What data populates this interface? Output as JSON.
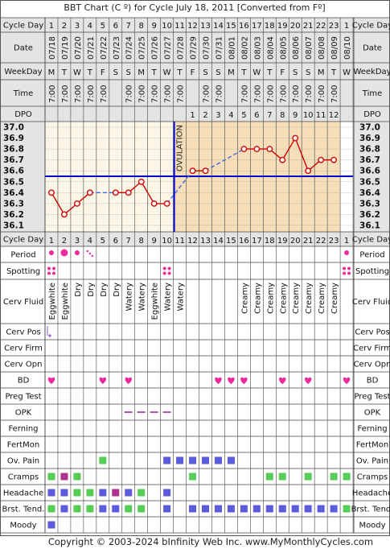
{
  "title": "BBT Chart (C º) for Cycle July 18, 2011  [Converted from Fº]",
  "footer": "Copyright © 2003-2024 bInfinity Web Inc.      www.MyMonthlyCycles.com",
  "ovulation_label": "OVULATION",
  "row_labels": {
    "cycle_day": "Cycle Day",
    "date": "Date",
    "weekday": "WeekDay",
    "time": "Time",
    "dpo": "DPO",
    "period": "Period",
    "spotting": "Spotting",
    "cerv_fluid": "Cerv Fluid",
    "cerv_pos": "Cerv Pos",
    "cerv_firm": "Cerv Firm",
    "cerv_opn": "Cerv Opn",
    "bd": "BD",
    "preg_test": "Preg Test",
    "opk": "OPK",
    "ferning": "Ferning",
    "fertmon": "FertMon",
    "ov_pain": "Ov. Pain",
    "cramps": "Cramps",
    "headache": "Headache",
    "brst_tend": "Brst. Tend.",
    "moody": "Moody"
  },
  "days": [
    "1",
    "2",
    "3",
    "4",
    "5",
    "6",
    "7",
    "8",
    "9",
    "10",
    "11",
    "12",
    "13",
    "14",
    "15",
    "16",
    "17",
    "18",
    "19",
    "20",
    "21",
    "22",
    "23",
    "1"
  ],
  "dates": [
    "07/18",
    "07/19",
    "07/20",
    "07/21",
    "07/22",
    "07/23",
    "07/24",
    "07/25",
    "07/26",
    "07/27",
    "07/28",
    "07/29",
    "07/30",
    "07/31",
    "08/01",
    "08/02",
    "08/03",
    "08/04",
    "08/05",
    "08/06",
    "08/07",
    "08/08",
    "08/09",
    "08/10"
  ],
  "weekdays": [
    "M",
    "T",
    "W",
    "T",
    "F",
    "S",
    "S",
    "M",
    "T",
    "W",
    "T",
    "F",
    "S",
    "S",
    "M",
    "T",
    "W",
    "T",
    "F",
    "S",
    "S",
    "M",
    "T",
    "W"
  ],
  "times": [
    "7:00",
    "7:00",
    "7:00",
    "7:00",
    "7:00",
    "",
    "7:00",
    "7:00",
    "7:00",
    "7:00",
    "7:00",
    "",
    "7:00",
    "7:00",
    "",
    "7:00",
    "7:00",
    "7:00",
    "7:00",
    "7:00",
    "7:00",
    "7:00",
    "7:00",
    ""
  ],
  "dpo": [
    "",
    "",
    "",
    "",
    "",
    "",
    "",
    "",
    "",
    "",
    "",
    "1",
    "2",
    "3",
    "4",
    "5",
    "6",
    "7",
    "8",
    "9",
    "10",
    "11",
    "12",
    ""
  ],
  "cerv_fluid": [
    "Eggwhite",
    "Eggwhite",
    "Dry",
    "Dry",
    "Dry",
    "Dry",
    "Watery",
    "Watery",
    "Eggwhite",
    "Watery",
    "Watery",
    "",
    "",
    "",
    "",
    "Creamy",
    "Creamy",
    "Creamy",
    "Creamy",
    "Creamy",
    "Creamy",
    "Creamy",
    "Creamy",
    ""
  ],
  "period": [
    "medium",
    "heavy",
    "medium",
    "spotting",
    "",
    "",
    "",
    "",
    "",
    "",
    "",
    "",
    "",
    "",
    "",
    "",
    "",
    "",
    "",
    "",
    "",
    "",
    "",
    "medium"
  ],
  "spotting": [
    1,
    0,
    0,
    0,
    0,
    0,
    0,
    0,
    0,
    1,
    0,
    0,
    0,
    0,
    0,
    0,
    0,
    0,
    0,
    0,
    0,
    0,
    0,
    1
  ],
  "cerv_pos": [
    1,
    0,
    0,
    0,
    0,
    0,
    0,
    0,
    0,
    0,
    0,
    0,
    0,
    0,
    0,
    0,
    0,
    0,
    0,
    0,
    0,
    0,
    0,
    0
  ],
  "bd": [
    1,
    0,
    0,
    0,
    1,
    0,
    1,
    0,
    0,
    0,
    0,
    0,
    0,
    1,
    1,
    1,
    0,
    0,
    1,
    0,
    1,
    0,
    0,
    1
  ],
  "opk": [
    0,
    0,
    0,
    0,
    0,
    0,
    1,
    1,
    1,
    1,
    0,
    0,
    0,
    0,
    0,
    0,
    0,
    0,
    0,
    0,
    0,
    0,
    0,
    0
  ],
  "ov_pain": [
    0,
    0,
    0,
    0,
    1,
    0,
    0,
    0,
    0,
    1,
    1,
    1,
    1,
    1,
    1,
    0,
    0,
    0,
    0,
    0,
    0,
    0,
    0,
    0
  ],
  "cramps": [
    "green",
    "purple",
    "green",
    "",
    "",
    "",
    "",
    "",
    "",
    "",
    "",
    "green",
    "",
    "",
    "",
    "",
    "",
    "green",
    "green",
    "",
    "green",
    "",
    "green",
    "green"
  ],
  "headache": [
    "blue",
    "blue",
    "green",
    "green",
    "blue",
    "purple",
    "blue",
    "green",
    "",
    "blue",
    "",
    "",
    "",
    "",
    "",
    "",
    "",
    "",
    "",
    "",
    "",
    "",
    "",
    ""
  ],
  "brst_tend": [
    "green",
    "blue",
    "green",
    "green",
    "blue",
    "blue",
    "green",
    "green",
    "",
    "blue",
    "",
    "blue",
    "blue",
    "blue",
    "blue",
    "blue",
    "blue",
    "blue",
    "blue",
    "blue",
    "blue",
    "blue",
    "blue",
    "green"
  ],
  "moody": [
    "blue",
    "",
    "",
    "",
    "",
    "",
    "",
    "",
    "",
    "",
    "",
    "",
    "",
    "",
    "",
    "",
    "",
    "",
    "",
    "",
    "",
    "",
    "",
    ""
  ],
  "colors": {
    "blue_line": "#0000cc",
    "red_line": "#cc0000",
    "data_red": "#d01010",
    "pink": "#ee2aa0",
    "luteal_fill": "#f6dfb8",
    "follicular_fill": "#fbf6e6",
    "header_fill": "#e4e4e4",
    "symptom_blue": "#5b5bdc",
    "symptom_green": "#57cc57",
    "symptom_purple": "#b03090",
    "opk_purple": "#9a2ea0"
  },
  "chart_data": {
    "type": "line",
    "title": "BBT Chart (C º) for Cycle July 18, 2011  [Converted from Fº]",
    "xlabel": "Cycle Day",
    "ylabel": "",
    "categories": [
      "1",
      "2",
      "3",
      "4",
      "5",
      "6",
      "7",
      "8",
      "9",
      "10",
      "11",
      "12",
      "13",
      "14",
      "15",
      "16",
      "17",
      "18",
      "19",
      "20",
      "21",
      "22",
      "23",
      "1"
    ],
    "y_ticks": [
      "37.0",
      "36.9",
      "36.8",
      "36.7",
      "36.6",
      "36.5",
      "36.4",
      "36.3",
      "36.2",
      "36.1"
    ],
    "ylim": [
      36.1,
      37.0
    ],
    "coverline": 36.55,
    "ovulation_after_day": 10,
    "series": [
      {
        "values": [
          36.4,
          36.2,
          36.3,
          36.4,
          null,
          36.4,
          36.4,
          36.5,
          36.3,
          36.3,
          null,
          36.6,
          36.6,
          null,
          null,
          36.8,
          36.8,
          36.8,
          36.7,
          36.9,
          36.6,
          36.7,
          36.7,
          null
        ]
      }
    ]
  }
}
